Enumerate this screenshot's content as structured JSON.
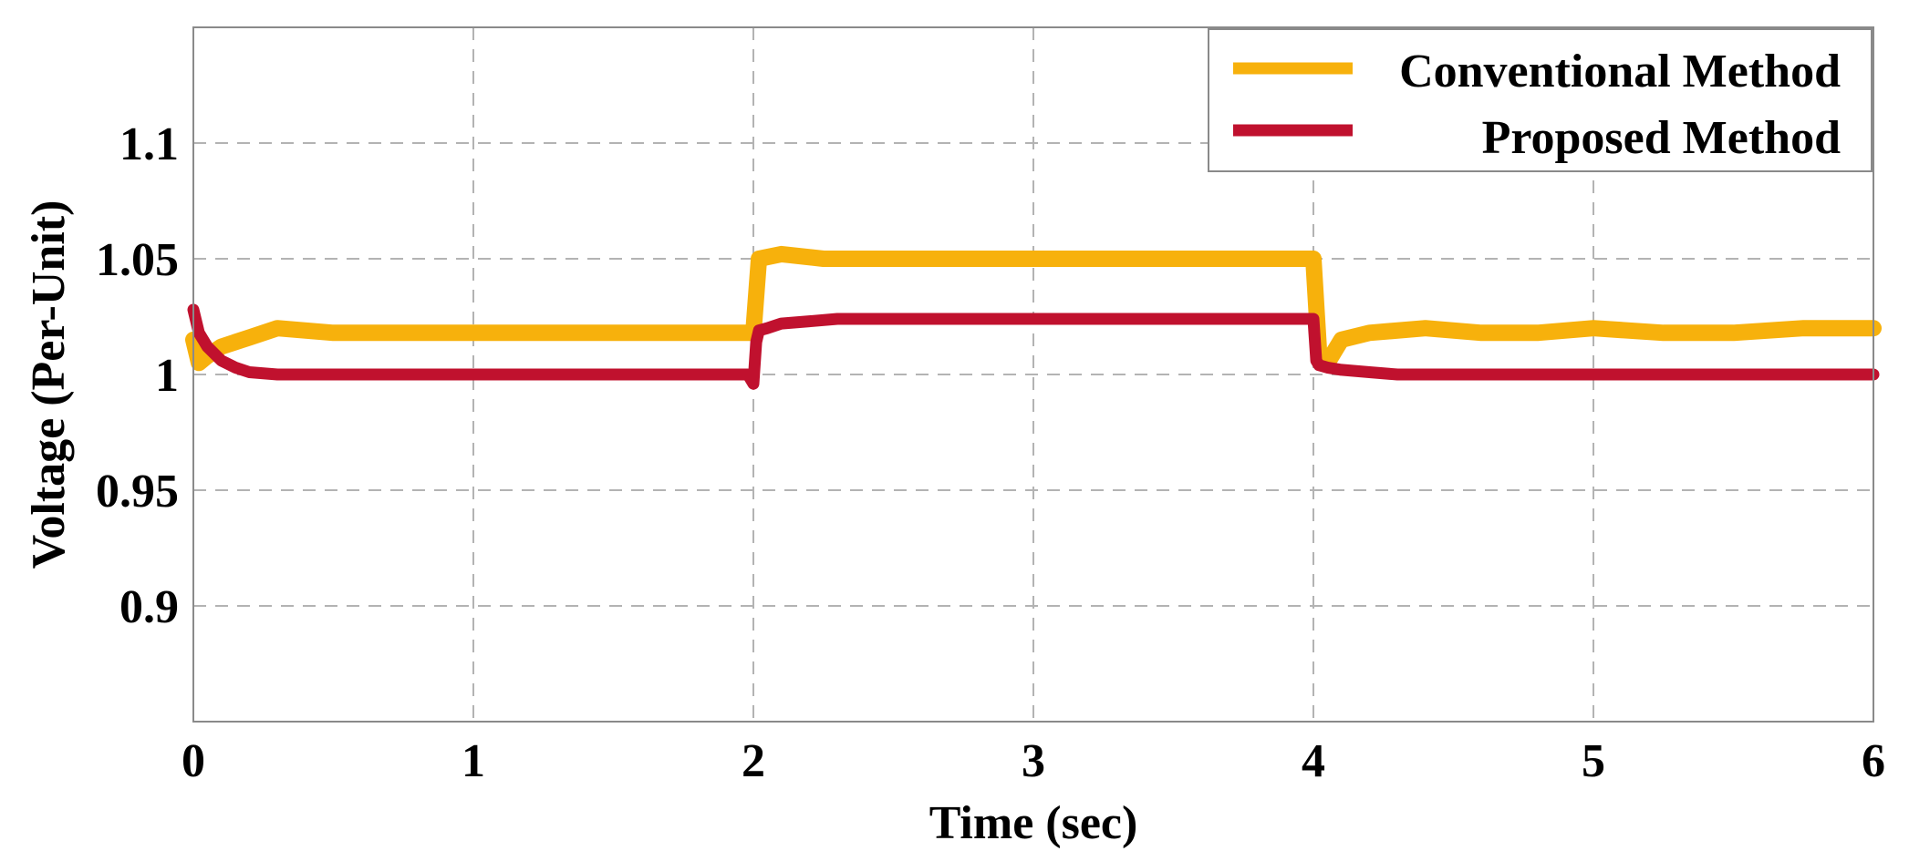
{
  "chart_data": {
    "type": "line",
    "title": "",
    "xlabel": "Time (sec)",
    "ylabel": "Voltage (Per-Unit)",
    "xlim": [
      0,
      6
    ],
    "ylim": [
      0.85,
      1.15
    ],
    "x_ticks": [
      0,
      1,
      2,
      3,
      4,
      5,
      6
    ],
    "x_tick_labels": [
      "0",
      "1",
      "2",
      "3",
      "4",
      "5",
      "6"
    ],
    "y_ticks": [
      0.9,
      0.95,
      1,
      1.05,
      1.1
    ],
    "y_tick_labels": [
      "0.9",
      "0.95",
      "1",
      "1.05",
      "1.1"
    ],
    "grid": true,
    "legend_position": "top-right",
    "series": [
      {
        "name": "Conventional Method",
        "color": "#F7B10C",
        "x": [
          0,
          0.02,
          0.05,
          0.1,
          0.2,
          0.3,
          0.5,
          0.75,
          1.0,
          1.25,
          1.5,
          1.75,
          1.98,
          2.0,
          2.02,
          2.1,
          2.25,
          2.5,
          2.75,
          3.0,
          3.25,
          3.5,
          3.75,
          3.98,
          4.0,
          4.02,
          4.05,
          4.1,
          4.2,
          4.4,
          4.6,
          4.8,
          5.0,
          5.25,
          5.5,
          5.75,
          6.0
        ],
        "y": [
          1.015,
          1.005,
          1.008,
          1.012,
          1.016,
          1.02,
          1.018,
          1.018,
          1.018,
          1.018,
          1.018,
          1.018,
          1.018,
          1.018,
          1.05,
          1.052,
          1.05,
          1.05,
          1.05,
          1.05,
          1.05,
          1.05,
          1.05,
          1.05,
          1.05,
          1.01,
          1.005,
          1.015,
          1.018,
          1.02,
          1.018,
          1.018,
          1.02,
          1.018,
          1.018,
          1.02,
          1.02
        ]
      },
      {
        "name": "Proposed Method",
        "color": "#C0112E",
        "x": [
          0,
          0.02,
          0.05,
          0.1,
          0.15,
          0.2,
          0.3,
          0.5,
          1.0,
          1.5,
          1.98,
          2.0,
          2.01,
          2.02,
          2.05,
          2.1,
          2.2,
          2.3,
          2.5,
          3.0,
          3.5,
          3.98,
          4.0,
          4.01,
          4.02,
          4.05,
          4.1,
          4.2,
          4.3,
          4.5,
          5.0,
          5.5,
          6.0
        ],
        "y": [
          1.028,
          1.018,
          1.012,
          1.006,
          1.003,
          1.001,
          1.0,
          1.0,
          1.0,
          1.0,
          1.0,
          0.996,
          1.014,
          1.019,
          1.02,
          1.022,
          1.023,
          1.024,
          1.024,
          1.024,
          1.024,
          1.024,
          1.024,
          1.006,
          1.004,
          1.003,
          1.002,
          1.001,
          1.0,
          1.0,
          1.0,
          1.0,
          1.0
        ]
      }
    ]
  }
}
